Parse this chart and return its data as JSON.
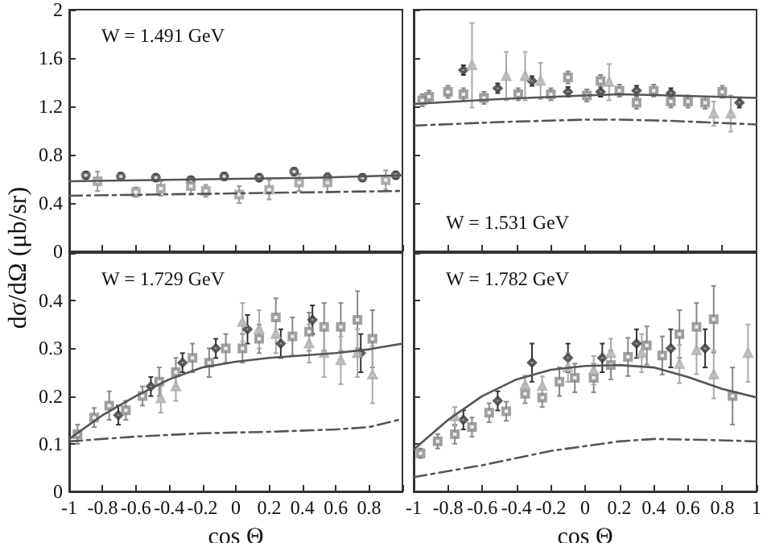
{
  "chart_data": [
    {
      "type": "scatter",
      "ylabel": "dσ/dΩ (μb/sr)",
      "annotations": [
        "W = 1.491 GeV"
      ],
      "xlim": [
        -1,
        1
      ],
      "ylim": [
        0,
        2
      ],
      "xticks": [
        -1,
        -0.8,
        -0.6,
        -0.4,
        -0.2,
        0,
        0.2,
        0.4,
        0.6,
        0.8,
        1
      ],
      "yticks": [
        0,
        0.4,
        0.8,
        1.2,
        1.6,
        2
      ],
      "tick_labels": "y",
      "series": [
        {
          "marker": "circle",
          "color": "#444444",
          "x": [
            -0.9,
            -0.69,
            -0.48,
            -0.27,
            -0.07,
            0.14,
            0.35,
            0.55,
            0.76,
            0.96
          ],
          "values": [
            0.63,
            0.62,
            0.61,
            0.59,
            0.62,
            0.61,
            0.66,
            0.61,
            0.61,
            0.63
          ],
          "errors": [
            0.03,
            0.03,
            0.03,
            0.03,
            0.03,
            0.03,
            0.03,
            0.03,
            0.03,
            0.03
          ]
        },
        {
          "marker": "square",
          "color": "#999999",
          "x": [
            -0.83,
            -0.6,
            -0.45,
            -0.27,
            -0.18,
            0.02,
            0.2,
            0.38,
            0.55,
            0.9
          ],
          "values": [
            0.58,
            0.49,
            0.52,
            0.54,
            0.5,
            0.47,
            0.51,
            0.57,
            0.57,
            0.59
          ],
          "errors": [
            0.08,
            0.04,
            0.06,
            0.07,
            0.05,
            0.07,
            0.08,
            0.07,
            0.08,
            0.08
          ]
        },
        {
          "type": "line",
          "marker": "none",
          "line_style": "solid",
          "color": "#555555",
          "x": [
            -1,
            -0.5,
            0,
            0.5,
            1
          ],
          "values": [
            0.58,
            0.59,
            0.6,
            0.61,
            0.63
          ]
        },
        {
          "type": "line",
          "marker": "none",
          "line_style": "dashed",
          "color": "#555555",
          "x": [
            -1,
            -0.5,
            0,
            0.5,
            1
          ],
          "values": [
            0.46,
            0.47,
            0.48,
            0.49,
            0.5
          ]
        }
      ]
    },
    {
      "type": "scatter",
      "annotations": [
        "W = 1.531 GeV"
      ],
      "xlim": [
        -1,
        1
      ],
      "ylim": [
        0,
        2
      ],
      "xticks": [
        -0.8,
        -0.6,
        -0.4,
        -0.2,
        0,
        0.2,
        0.4,
        0.6,
        0.8
      ],
      "yticks": [
        0,
        0.4,
        0.8,
        1.2,
        1.6,
        2
      ],
      "tick_labels": false,
      "series": [
        {
          "marker": "diamond",
          "color": "#333333",
          "x": [
            -0.71,
            -0.51,
            -0.31,
            -0.1,
            0.09,
            0.3,
            0.5,
            0.9
          ],
          "values": [
            1.5,
            1.35,
            1.41,
            1.32,
            1.32,
            1.33,
            1.31,
            1.23
          ],
          "errors": [
            0.04,
            0.04,
            0.04,
            0.04,
            0.04,
            0.04,
            0.04,
            0.04
          ]
        },
        {
          "marker": "square",
          "color": "#888888",
          "x": [
            -0.95,
            -0.91,
            -0.8,
            -0.71,
            -0.59,
            -0.39,
            -0.2,
            -0.1,
            0.01,
            0.09,
            0.2,
            0.3,
            0.4,
            0.5,
            0.6,
            0.7,
            0.8
          ],
          "values": [
            1.25,
            1.28,
            1.32,
            1.3,
            1.27,
            1.3,
            1.3,
            1.44,
            1.29,
            1.41,
            1.33,
            1.23,
            1.33,
            1.24,
            1.24,
            1.23,
            1.32
          ],
          "errors": [
            0.05,
            0.05,
            0.05,
            0.05,
            0.05,
            0.05,
            0.05,
            0.05,
            0.05,
            0.05,
            0.05,
            0.05,
            0.05,
            0.05,
            0.05,
            0.05,
            0.05
          ]
        },
        {
          "marker": "triangle",
          "color": "#aaaaaa",
          "x": [
            -0.66,
            -0.46,
            -0.35,
            -0.26,
            0.14,
            0.75,
            0.85
          ],
          "values": [
            1.54,
            1.45,
            1.45,
            1.41,
            1.4,
            1.14,
            1.14
          ],
          "errors": [
            0.35,
            0.2,
            0.2,
            0.15,
            0.15,
            0.1,
            0.15
          ]
        },
        {
          "type": "line",
          "marker": "none",
          "line_style": "solid",
          "color": "#555555",
          "x": [
            -1,
            -0.5,
            0,
            0.2,
            0.5,
            1
          ],
          "values": [
            1.22,
            1.26,
            1.29,
            1.3,
            1.29,
            1.27
          ]
        },
        {
          "type": "line",
          "marker": "none",
          "line_style": "dashed",
          "color": "#555555",
          "x": [
            -1,
            -0.5,
            0,
            0.2,
            0.5,
            1
          ],
          "values": [
            1.04,
            1.07,
            1.09,
            1.09,
            1.08,
            1.05
          ]
        }
      ]
    },
    {
      "type": "scatter",
      "xlabel": "cos Θ",
      "annotations": [
        "W = 1.729 GeV"
      ],
      "xlim": [
        -1,
        1
      ],
      "ylim": [
        0,
        0.5
      ],
      "xticks": [
        -1,
        -0.8,
        -0.6,
        -0.4,
        -0.2,
        0,
        0.2,
        0.4,
        0.6,
        0.8,
        {
          "value": 1,
          "label": null
        }
      ],
      "yticks": [
        0,
        0.1,
        0.2,
        0.3,
        0.4,
        {
          "value": 0.5,
          "label": null
        }
      ],
      "series": [
        {
          "marker": "diamond",
          "color": "#333333",
          "x": [
            -0.705,
            -0.51,
            -0.32,
            -0.12,
            0.07,
            0.27,
            0.46,
            0.75
          ],
          "values": [
            0.16,
            0.22,
            0.27,
            0.3,
            0.34,
            0.31,
            0.36,
            0.29
          ],
          "errors": [
            0.02,
            0.02,
            0.02,
            0.02,
            0.03,
            0.03,
            0.03,
            0.04
          ]
        },
        {
          "marker": "square",
          "color": "#888888",
          "x": [
            -0.95,
            -0.85,
            -0.76,
            -0.66,
            -0.56,
            -0.46,
            -0.36,
            -0.26,
            -0.16,
            -0.06,
            0.04,
            0.14,
            0.24,
            0.34,
            0.44,
            0.53,
            0.63,
            0.73,
            0.82
          ],
          "values": [
            0.12,
            0.155,
            0.18,
            0.17,
            0.2,
            0.23,
            0.25,
            0.28,
            0.27,
            0.3,
            0.3,
            0.32,
            0.365,
            0.325,
            0.335,
            0.345,
            0.345,
            0.36,
            0.32
          ],
          "errors": [
            0.02,
            0.02,
            0.03,
            0.02,
            0.02,
            0.03,
            0.03,
            0.03,
            0.03,
            0.03,
            0.03,
            0.03,
            0.04,
            0.04,
            0.04,
            0.05,
            0.05,
            0.06,
            0.06
          ]
        },
        {
          "marker": "triangle",
          "color": "#aaaaaa",
          "x": [
            -0.45,
            -0.36,
            0.04,
            0.14,
            0.24,
            0.44,
            0.53,
            0.63,
            0.73,
            0.82
          ],
          "values": [
            0.195,
            0.22,
            0.355,
            0.34,
            0.33,
            0.31,
            0.29,
            0.275,
            0.29,
            0.245
          ],
          "errors": [
            0.03,
            0.03,
            0.04,
            0.04,
            0.04,
            0.04,
            0.05,
            0.05,
            0.05,
            0.06
          ]
        },
        {
          "type": "line",
          "marker": "none",
          "line_style": "solid",
          "color": "#555555",
          "x": [
            -1,
            -0.8,
            -0.6,
            -0.4,
            -0.2,
            0,
            0.2,
            0.4,
            0.6,
            0.8,
            1
          ],
          "values": [
            0.11,
            0.16,
            0.2,
            0.235,
            0.26,
            0.272,
            0.28,
            0.285,
            0.29,
            0.298,
            0.31
          ]
        },
        {
          "type": "line",
          "marker": "none",
          "line_style": "dashed",
          "color": "#555555",
          "x": [
            -1,
            -0.6,
            -0.2,
            0.2,
            0.6,
            0.8,
            1
          ],
          "values": [
            0.105,
            0.115,
            0.122,
            0.125,
            0.13,
            0.135,
            0.152
          ]
        }
      ]
    },
    {
      "type": "scatter",
      "xlabel": "cos Θ",
      "annotations": [
        "W = 1.782 GeV"
      ],
      "xlim": [
        -1,
        1
      ],
      "ylim": [
        0,
        0.5
      ],
      "xticks": [
        -1,
        -0.8,
        -0.6,
        -0.4,
        -0.2,
        0,
        0.2,
        0.4,
        0.6,
        0.8,
        1
      ],
      "yticks": [
        0,
        0.1,
        0.2,
        0.3,
        0.4,
        0.5
      ],
      "tick_labels": "x",
      "series": [
        {
          "marker": "diamond",
          "color": "#333333",
          "x": [
            -0.71,
            -0.51,
            -0.31,
            -0.1,
            0.1,
            0.3,
            0.5,
            0.7
          ],
          "values": [
            0.15,
            0.19,
            0.27,
            0.28,
            0.28,
            0.31,
            0.3,
            0.3
          ],
          "errors": [
            0.02,
            0.02,
            0.04,
            0.03,
            0.03,
            0.03,
            0.04,
            0.04
          ]
        },
        {
          "marker": "square",
          "color": "#888888",
          "x": [
            -0.96,
            -0.86,
            -0.76,
            -0.66,
            -0.56,
            -0.46,
            -0.35,
            -0.25,
            -0.15,
            -0.06,
            0.05,
            0.15,
            0.25,
            0.36,
            0.45,
            0.55,
            0.65,
            0.75,
            0.86
          ],
          "values": [
            0.08,
            0.105,
            0.12,
            0.135,
            0.165,
            0.168,
            0.205,
            0.197,
            0.23,
            0.238,
            0.238,
            0.265,
            0.282,
            0.306,
            0.285,
            0.33,
            0.345,
            0.361,
            0.2
          ],
          "errors": [
            0.01,
            0.015,
            0.02,
            0.02,
            0.02,
            0.02,
            0.02,
            0.02,
            0.03,
            0.03,
            0.03,
            0.03,
            0.04,
            0.04,
            0.04,
            0.05,
            0.05,
            0.07,
            0.06
          ]
        },
        {
          "marker": "triangle",
          "color": "#aaaaaa",
          "x": [
            -0.76,
            -0.35,
            -0.25,
            -0.1,
            0.05,
            0.15,
            0.33,
            0.55,
            0.65,
            0.75,
            0.95
          ],
          "values": [
            0.157,
            0.223,
            0.221,
            0.26,
            0.254,
            0.29,
            0.29,
            0.267,
            0.296,
            0.245,
            0.29
          ],
          "errors": [
            0.02,
            0.02,
            0.02,
            0.03,
            0.03,
            0.03,
            0.04,
            0.04,
            0.05,
            0.05,
            0.06
          ]
        },
        {
          "type": "line",
          "marker": "none",
          "line_style": "solid",
          "color": "#555555",
          "x": [
            -1,
            -0.8,
            -0.6,
            -0.4,
            -0.2,
            0,
            0.2,
            0.4,
            0.6,
            0.8,
            1
          ],
          "values": [
            0.088,
            0.15,
            0.2,
            0.235,
            0.255,
            0.263,
            0.265,
            0.26,
            0.24,
            0.215,
            0.197
          ]
        },
        {
          "type": "line",
          "marker": "none",
          "line_style": "dashed",
          "color": "#555555",
          "x": [
            -1,
            -0.6,
            -0.2,
            0.2,
            0.4,
            0.7,
            1
          ],
          "values": [
            0.03,
            0.055,
            0.085,
            0.105,
            0.11,
            0.108,
            0.105
          ]
        }
      ]
    }
  ]
}
